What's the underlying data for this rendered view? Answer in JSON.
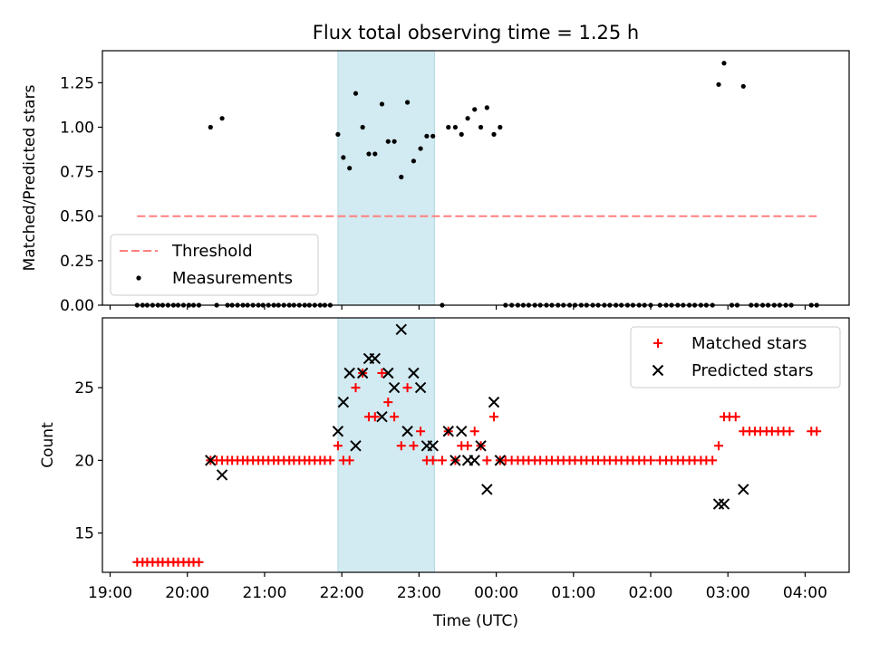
{
  "chart_data": [
    {
      "type": "scatter",
      "title": "Flux total observing time = 1.25 h",
      "xlabel": "",
      "ylabel": "Matched/Predicted stars",
      "x_unit": "hours since 19:00 UTC",
      "xlim": [
        -0.1,
        9.57
      ],
      "ylim": [
        0.0,
        1.43
      ],
      "yticks": [
        0.0,
        0.25,
        0.5,
        0.75,
        1.0,
        1.25
      ],
      "ytick_labels": [
        "0.00",
        "0.25",
        "0.50",
        "0.75",
        "1.00",
        "1.25"
      ],
      "shaded_region": {
        "x0": 2.95,
        "x1": 4.2,
        "color": "#add8e6"
      },
      "legend": {
        "position": "lower left",
        "entries": [
          "Threshold",
          "Measurements"
        ]
      },
      "threshold": {
        "name": "Threshold",
        "x": [
          0.35,
          9.15
        ],
        "y": 0.5,
        "color": "#ff7f7f",
        "style": "dashed"
      },
      "series": [
        {
          "name": "Measurements",
          "color": "#000000",
          "points": [
            [
              0.35,
              0
            ],
            [
              0.42,
              0
            ],
            [
              0.48,
              0
            ],
            [
              0.55,
              0
            ],
            [
              0.62,
              0
            ],
            [
              0.68,
              0
            ],
            [
              0.75,
              0
            ],
            [
              0.82,
              0
            ],
            [
              0.88,
              0
            ],
            [
              0.95,
              0
            ],
            [
              1.02,
              0
            ],
            [
              1.08,
              0
            ],
            [
              1.15,
              0
            ],
            [
              1.3,
              1.0
            ],
            [
              1.38,
              0
            ],
            [
              1.45,
              1.05
            ],
            [
              1.52,
              0
            ],
            [
              1.58,
              0
            ],
            [
              1.65,
              0
            ],
            [
              1.72,
              0
            ],
            [
              1.78,
              0
            ],
            [
              1.85,
              0
            ],
            [
              1.92,
              0
            ],
            [
              1.98,
              0
            ],
            [
              2.05,
              0
            ],
            [
              2.12,
              0
            ],
            [
              2.18,
              0
            ],
            [
              2.25,
              0
            ],
            [
              2.32,
              0
            ],
            [
              2.38,
              0
            ],
            [
              2.45,
              0
            ],
            [
              2.52,
              0
            ],
            [
              2.58,
              0
            ],
            [
              2.65,
              0
            ],
            [
              2.72,
              0
            ],
            [
              2.78,
              0
            ],
            [
              2.85,
              0
            ],
            [
              2.95,
              0.96
            ],
            [
              3.02,
              0.83
            ],
            [
              3.1,
              0.77
            ],
            [
              3.18,
              1.19
            ],
            [
              3.27,
              1.0
            ],
            [
              3.35,
              0.85
            ],
            [
              3.43,
              0.85
            ],
            [
              3.52,
              1.13
            ],
            [
              3.6,
              0.92
            ],
            [
              3.68,
              0.92
            ],
            [
              3.77,
              0.72
            ],
            [
              3.85,
              1.14
            ],
            [
              3.93,
              0.81
            ],
            [
              4.02,
              0.88
            ],
            [
              4.1,
              0.95
            ],
            [
              4.18,
              0.95
            ],
            [
              4.3,
              0
            ],
            [
              4.38,
              1.0
            ],
            [
              4.47,
              1.0
            ],
            [
              4.55,
              0.96
            ],
            [
              4.63,
              1.05
            ],
            [
              4.72,
              1.1
            ],
            [
              4.8,
              1.0
            ],
            [
              4.88,
              1.11
            ],
            [
              4.97,
              0.96
            ],
            [
              5.05,
              1.0
            ],
            [
              5.12,
              0
            ],
            [
              5.2,
              0
            ],
            [
              5.28,
              0
            ],
            [
              5.35,
              0
            ],
            [
              5.42,
              0
            ],
            [
              5.5,
              0
            ],
            [
              5.57,
              0
            ],
            [
              5.65,
              0
            ],
            [
              5.72,
              0
            ],
            [
              5.8,
              0
            ],
            [
              5.87,
              0
            ],
            [
              5.95,
              0
            ],
            [
              6.02,
              0
            ],
            [
              6.1,
              0
            ],
            [
              6.17,
              0
            ],
            [
              6.25,
              0
            ],
            [
              6.32,
              0
            ],
            [
              6.4,
              0
            ],
            [
              6.47,
              0
            ],
            [
              6.55,
              0
            ],
            [
              6.62,
              0
            ],
            [
              6.7,
              0
            ],
            [
              6.77,
              0
            ],
            [
              6.85,
              0
            ],
            [
              6.92,
              0
            ],
            [
              7.0,
              0
            ],
            [
              7.12,
              0
            ],
            [
              7.2,
              0
            ],
            [
              7.27,
              0
            ],
            [
              7.35,
              0
            ],
            [
              7.42,
              0
            ],
            [
              7.5,
              0
            ],
            [
              7.57,
              0
            ],
            [
              7.65,
              0
            ],
            [
              7.72,
              0
            ],
            [
              7.8,
              0
            ],
            [
              7.88,
              1.24
            ],
            [
              7.95,
              1.36
            ],
            [
              8.05,
              0
            ],
            [
              8.12,
              0
            ],
            [
              8.2,
              1.23
            ],
            [
              8.3,
              0
            ],
            [
              8.37,
              0
            ],
            [
              8.45,
              0
            ],
            [
              8.52,
              0
            ],
            [
              8.6,
              0
            ],
            [
              8.67,
              0
            ],
            [
              8.75,
              0
            ],
            [
              8.82,
              0
            ],
            [
              9.08,
              0
            ],
            [
              9.15,
              0
            ]
          ]
        }
      ]
    },
    {
      "type": "scatter",
      "title": "",
      "xlabel": "Time (UTC)",
      "ylabel": "Count",
      "x_unit": "hours since 19:00 UTC",
      "xlim": [
        -0.1,
        9.57
      ],
      "ylim": [
        12.3,
        29.8
      ],
      "yticks": [
        15,
        20,
        25
      ],
      "xticks": [
        0,
        1,
        2,
        3,
        4,
        5,
        6,
        7,
        8,
        9
      ],
      "xtick_labels": [
        "19:00",
        "20:00",
        "21:00",
        "22:00",
        "23:00",
        "00:00",
        "01:00",
        "02:00",
        "03:00",
        "04:00"
      ],
      "shaded_region": {
        "x0": 2.95,
        "x1": 4.2,
        "color": "#add8e6"
      },
      "legend": {
        "position": "upper right",
        "entries": [
          "Matched stars",
          "Predicted stars"
        ]
      },
      "series": [
        {
          "name": "Matched stars",
          "marker": "+",
          "color": "#ff0000",
          "points": [
            [
              0.35,
              13
            ],
            [
              0.42,
              13
            ],
            [
              0.48,
              13
            ],
            [
              0.55,
              13
            ],
            [
              0.62,
              13
            ],
            [
              0.68,
              13
            ],
            [
              0.75,
              13
            ],
            [
              0.82,
              13
            ],
            [
              0.88,
              13
            ],
            [
              0.95,
              13
            ],
            [
              1.02,
              13
            ],
            [
              1.08,
              13
            ],
            [
              1.15,
              13
            ],
            [
              1.3,
              20
            ],
            [
              1.38,
              20
            ],
            [
              1.45,
              20
            ],
            [
              1.52,
              20
            ],
            [
              1.58,
              20
            ],
            [
              1.65,
              20
            ],
            [
              1.72,
              20
            ],
            [
              1.78,
              20
            ],
            [
              1.85,
              20
            ],
            [
              1.92,
              20
            ],
            [
              1.98,
              20
            ],
            [
              2.05,
              20
            ],
            [
              2.12,
              20
            ],
            [
              2.18,
              20
            ],
            [
              2.25,
              20
            ],
            [
              2.32,
              20
            ],
            [
              2.38,
              20
            ],
            [
              2.45,
              20
            ],
            [
              2.52,
              20
            ],
            [
              2.58,
              20
            ],
            [
              2.65,
              20
            ],
            [
              2.72,
              20
            ],
            [
              2.78,
              20
            ],
            [
              2.85,
              20
            ],
            [
              2.95,
              21
            ],
            [
              3.02,
              20
            ],
            [
              3.1,
              20
            ],
            [
              3.18,
              25
            ],
            [
              3.27,
              26
            ],
            [
              3.35,
              23
            ],
            [
              3.43,
              23
            ],
            [
              3.52,
              26
            ],
            [
              3.6,
              24
            ],
            [
              3.68,
              23
            ],
            [
              3.77,
              21
            ],
            [
              3.85,
              25
            ],
            [
              3.93,
              21
            ],
            [
              4.02,
              22
            ],
            [
              4.1,
              20
            ],
            [
              4.18,
              20
            ],
            [
              4.3,
              20
            ],
            [
              4.38,
              22
            ],
            [
              4.47,
              20
            ],
            [
              4.55,
              21
            ],
            [
              4.63,
              21
            ],
            [
              4.72,
              22
            ],
            [
              4.8,
              21
            ],
            [
              4.88,
              20
            ],
            [
              4.97,
              23
            ],
            [
              5.05,
              20
            ],
            [
              5.12,
              20
            ],
            [
              5.2,
              20
            ],
            [
              5.28,
              20
            ],
            [
              5.35,
              20
            ],
            [
              5.42,
              20
            ],
            [
              5.5,
              20
            ],
            [
              5.57,
              20
            ],
            [
              5.65,
              20
            ],
            [
              5.72,
              20
            ],
            [
              5.8,
              20
            ],
            [
              5.87,
              20
            ],
            [
              5.95,
              20
            ],
            [
              6.02,
              20
            ],
            [
              6.1,
              20
            ],
            [
              6.17,
              20
            ],
            [
              6.25,
              20
            ],
            [
              6.32,
              20
            ],
            [
              6.4,
              20
            ],
            [
              6.47,
              20
            ],
            [
              6.55,
              20
            ],
            [
              6.62,
              20
            ],
            [
              6.7,
              20
            ],
            [
              6.77,
              20
            ],
            [
              6.85,
              20
            ],
            [
              6.92,
              20
            ],
            [
              7.0,
              20
            ],
            [
              7.12,
              20
            ],
            [
              7.2,
              20
            ],
            [
              7.27,
              20
            ],
            [
              7.35,
              20
            ],
            [
              7.42,
              20
            ],
            [
              7.5,
              20
            ],
            [
              7.57,
              20
            ],
            [
              7.65,
              20
            ],
            [
              7.72,
              20
            ],
            [
              7.8,
              20
            ],
            [
              7.88,
              21
            ],
            [
              7.95,
              23
            ],
            [
              8.02,
              23
            ],
            [
              8.1,
              23
            ],
            [
              8.2,
              22
            ],
            [
              8.28,
              22
            ],
            [
              8.35,
              22
            ],
            [
              8.42,
              22
            ],
            [
              8.5,
              22
            ],
            [
              8.57,
              22
            ],
            [
              8.65,
              22
            ],
            [
              8.72,
              22
            ],
            [
              8.8,
              22
            ],
            [
              9.08,
              22
            ],
            [
              9.15,
              22
            ]
          ]
        },
        {
          "name": "Predicted stars",
          "marker": "x",
          "color": "#000000",
          "points": [
            [
              1.3,
              20
            ],
            [
              1.45,
              19
            ],
            [
              2.95,
              22
            ],
            [
              3.02,
              24
            ],
            [
              3.1,
              26
            ],
            [
              3.18,
              21
            ],
            [
              3.27,
              26
            ],
            [
              3.35,
              27
            ],
            [
              3.43,
              27
            ],
            [
              3.52,
              23
            ],
            [
              3.6,
              26
            ],
            [
              3.68,
              25
            ],
            [
              3.77,
              29
            ],
            [
              3.85,
              22
            ],
            [
              3.93,
              26
            ],
            [
              4.02,
              25
            ],
            [
              4.1,
              21
            ],
            [
              4.18,
              21
            ],
            [
              4.38,
              22
            ],
            [
              4.47,
              20
            ],
            [
              4.55,
              22
            ],
            [
              4.63,
              20
            ],
            [
              4.72,
              20
            ],
            [
              4.8,
              21
            ],
            [
              4.88,
              18
            ],
            [
              4.97,
              24
            ],
            [
              5.05,
              20
            ],
            [
              7.88,
              17
            ],
            [
              7.95,
              17
            ],
            [
              8.2,
              18
            ]
          ]
        }
      ]
    }
  ]
}
